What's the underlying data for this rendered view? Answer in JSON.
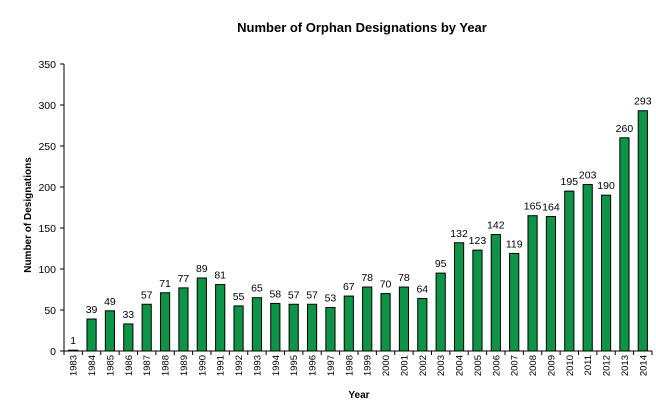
{
  "chart_data": {
    "type": "bar",
    "title": "Number of Orphan Designations  by Year",
    "xlabel": "Year",
    "ylabel": "Number of Designations",
    "ylim": [
      0,
      350
    ],
    "yticks": [
      0,
      50,
      100,
      150,
      200,
      250,
      300,
      350
    ],
    "ytick_labels": [
      "0",
      "50",
      "100",
      "150",
      "200",
      "250",
      "300",
      "350"
    ],
    "grid": false,
    "legend": "none",
    "categories": [
      "1983",
      "1984",
      "1985",
      "1986",
      "1987",
      "1988",
      "1989",
      "1990",
      "1991",
      "1992",
      "1993",
      "1994",
      "1995",
      "1996",
      "1997",
      "1998",
      "1999",
      "2000",
      "2001",
      "2002",
      "2003",
      "2004",
      "2005",
      "2006",
      "2007",
      "2008",
      "2009",
      "2010",
      "2011",
      "2012",
      "2013",
      "2014"
    ],
    "values": [
      1,
      39,
      49,
      33,
      57,
      71,
      77,
      89,
      81,
      55,
      65,
      58,
      57,
      57,
      53,
      67,
      78,
      70,
      78,
      64,
      95,
      132,
      123,
      142,
      119,
      165,
      164,
      195,
      203,
      190,
      260,
      293
    ],
    "data_labels": [
      "1",
      "39",
      "49",
      "33",
      "57",
      "71",
      "77",
      "89",
      "81",
      "55",
      "65",
      "58",
      "57",
      "57",
      "53",
      "67",
      "78",
      "70",
      "78",
      "64",
      "95",
      "132",
      "123",
      "142",
      "119",
      "165",
      "164",
      "195",
      "203",
      "190",
      "260",
      "293"
    ],
    "bar_color": "#0d9447",
    "bar_edge_color": "#000000"
  }
}
